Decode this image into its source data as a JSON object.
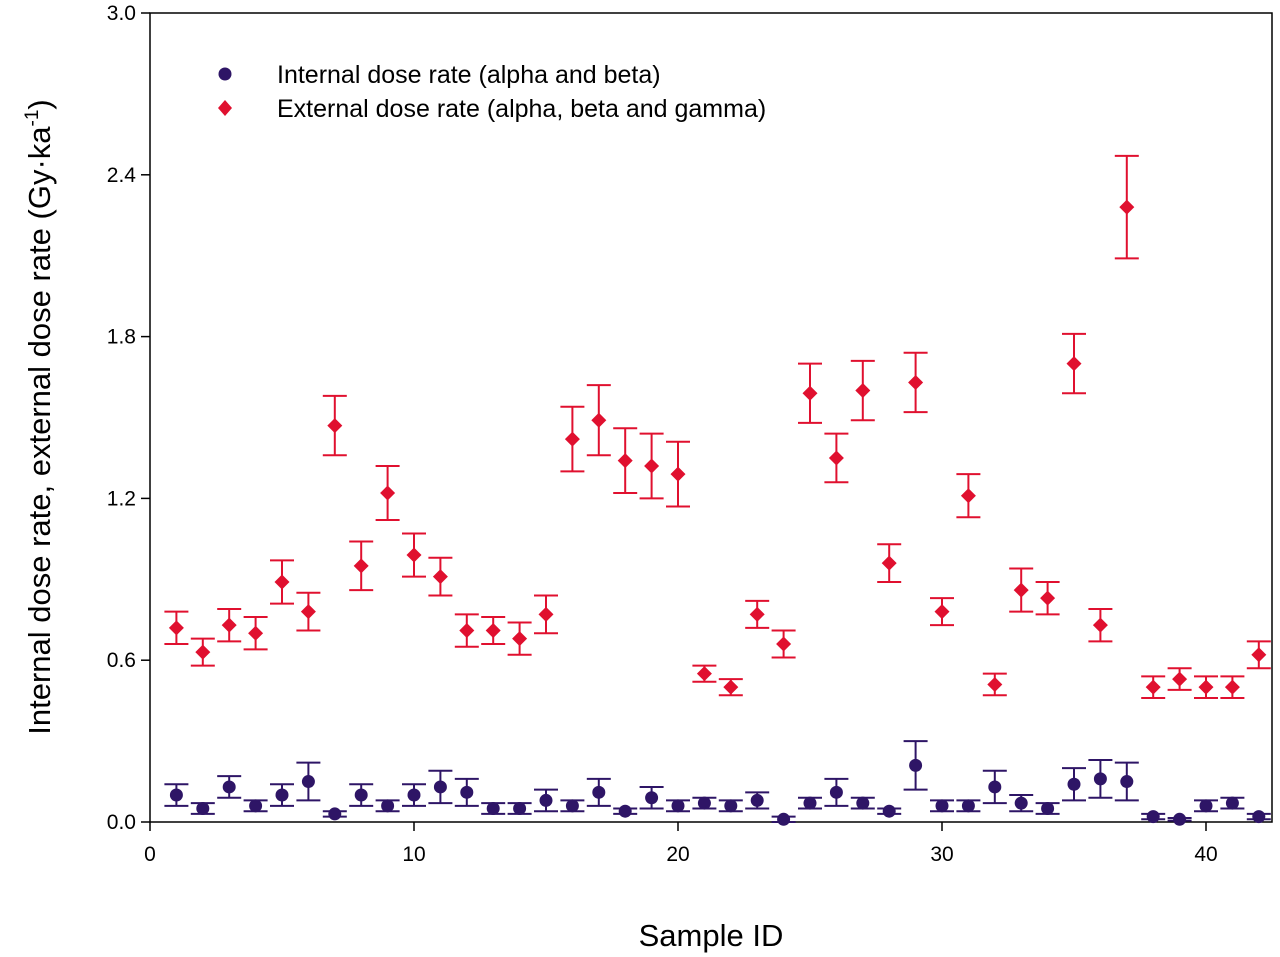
{
  "chart_data": {
    "type": "scatter",
    "xlabel": "Sample ID",
    "ylabel": "Internal dose rate, external dose rate (Gy·ka",
    "ylabel_superscript": "-1",
    "ylabel_suffix": ")",
    "xlim": [
      0,
      42.5
    ],
    "ylim": [
      0,
      3.0
    ],
    "x_ticks": [
      0,
      10,
      20,
      30,
      40
    ],
    "y_ticks": [
      0.0,
      0.6,
      1.2,
      1.8,
      2.4,
      3.0
    ],
    "y_tick_labels": [
      "0.0",
      "0.6",
      "1.2",
      "1.8",
      "2.4",
      "3.0"
    ],
    "grid": false,
    "legend_position": "top-left",
    "x": [
      1,
      2,
      3,
      4,
      5,
      6,
      7,
      8,
      9,
      10,
      11,
      12,
      13,
      14,
      15,
      16,
      17,
      18,
      19,
      20,
      21,
      22,
      23,
      24,
      25,
      26,
      27,
      28,
      29,
      30,
      31,
      32,
      33,
      34,
      35,
      36,
      37,
      38,
      39,
      40,
      41,
      42
    ],
    "series": [
      {
        "name": "Internal dose rate (alpha and beta)",
        "marker": "circle",
        "color": "#2e1566",
        "values": [
          0.1,
          0.05,
          0.13,
          0.06,
          0.1,
          0.15,
          0.03,
          0.1,
          0.06,
          0.1,
          0.13,
          0.11,
          0.05,
          0.05,
          0.08,
          0.06,
          0.11,
          0.04,
          0.09,
          0.06,
          0.07,
          0.06,
          0.08,
          0.01,
          0.07,
          0.11,
          0.07,
          0.04,
          0.21,
          0.06,
          0.06,
          0.13,
          0.07,
          0.05,
          0.14,
          0.16,
          0.15,
          0.02,
          0.01,
          0.06,
          0.07,
          0.02
        ],
        "errors": [
          0.04,
          0.02,
          0.04,
          0.02,
          0.04,
          0.07,
          0.01,
          0.04,
          0.02,
          0.04,
          0.06,
          0.05,
          0.02,
          0.02,
          0.04,
          0.02,
          0.05,
          0.01,
          0.04,
          0.02,
          0.02,
          0.02,
          0.03,
          0.01,
          0.02,
          0.05,
          0.02,
          0.01,
          0.09,
          0.02,
          0.02,
          0.06,
          0.03,
          0.02,
          0.06,
          0.07,
          0.07,
          0.01,
          0.005,
          0.02,
          0.02,
          0.01
        ]
      },
      {
        "name": "External dose rate (alpha, beta and gamma)",
        "marker": "diamond",
        "color": "#e0102f",
        "values": [
          0.72,
          0.63,
          0.73,
          0.7,
          0.89,
          0.78,
          1.47,
          0.95,
          1.22,
          0.99,
          0.91,
          0.71,
          0.71,
          0.68,
          0.77,
          1.42,
          1.49,
          1.34,
          1.32,
          1.29,
          0.55,
          0.5,
          0.77,
          0.66,
          1.59,
          1.35,
          1.6,
          0.96,
          1.63,
          0.78,
          1.21,
          0.51,
          0.86,
          0.83,
          1.7,
          0.73,
          2.28,
          0.5,
          0.53,
          0.5,
          0.5,
          0.62
        ],
        "errors": [
          0.06,
          0.05,
          0.06,
          0.06,
          0.08,
          0.07,
          0.11,
          0.09,
          0.1,
          0.08,
          0.07,
          0.06,
          0.05,
          0.06,
          0.07,
          0.12,
          0.13,
          0.12,
          0.12,
          0.12,
          0.03,
          0.03,
          0.05,
          0.05,
          0.11,
          0.09,
          0.11,
          0.07,
          0.11,
          0.05,
          0.08,
          0.04,
          0.08,
          0.06,
          0.11,
          0.06,
          0.19,
          0.04,
          0.04,
          0.04,
          0.04,
          0.05
        ]
      }
    ]
  }
}
